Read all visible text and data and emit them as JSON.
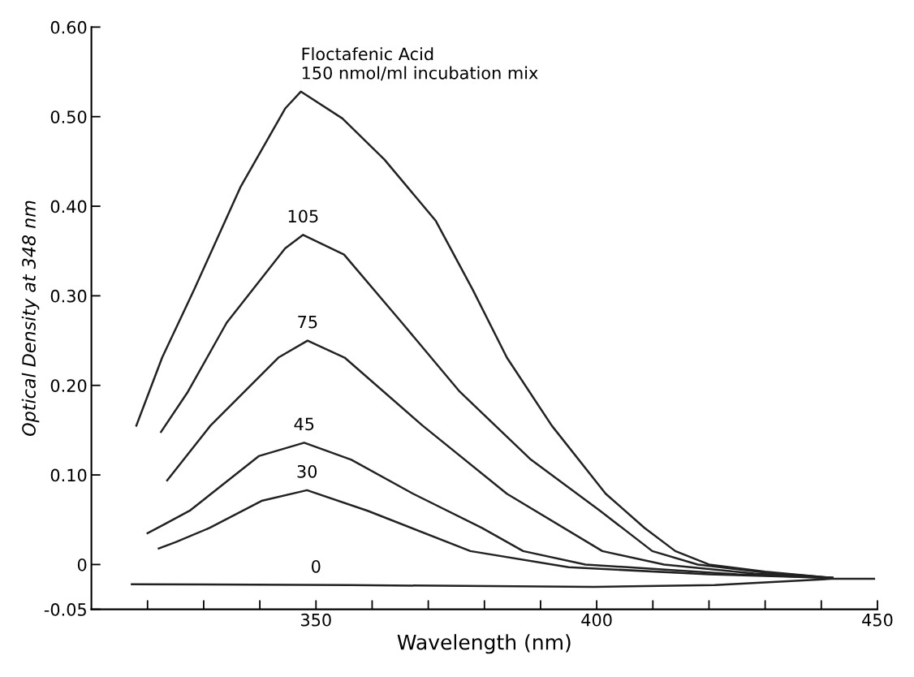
{
  "chart_data": {
    "type": "line",
    "xlabel": "Wavelength (nm)",
    "ylabel": "Optical Density at 348 nm",
    "xlim": [
      310,
      450
    ],
    "ylim": [
      -0.05,
      0.6
    ],
    "xticks": [
      {
        "value": 320,
        "label": null
      },
      {
        "value": 330,
        "label": null
      },
      {
        "value": 340,
        "label": null
      },
      {
        "value": 350,
        "label": "350"
      },
      {
        "value": 360,
        "label": null
      },
      {
        "value": 370,
        "label": null
      },
      {
        "value": 380,
        "label": null
      },
      {
        "value": 390,
        "label": null
      },
      {
        "value": 400,
        "label": "400"
      },
      {
        "value": 410,
        "label": null
      },
      {
        "value": 420,
        "label": null
      },
      {
        "value": 430,
        "label": null
      },
      {
        "value": 440,
        "label": null
      },
      {
        "value": 450,
        "label": "450"
      }
    ],
    "yticks": [
      {
        "value": -0.05,
        "label": "-0.05"
      },
      {
        "value": 0,
        "label": "0"
      },
      {
        "value": 0.1,
        "label": "0.10"
      },
      {
        "value": 0.2,
        "label": "0.20"
      },
      {
        "value": 0.3,
        "label": "0.30"
      },
      {
        "value": 0.4,
        "label": "0.40"
      },
      {
        "value": 0.5,
        "label": "0.50"
      },
      {
        "value": 0.6,
        "label": "0.60"
      }
    ],
    "marker": "none",
    "line_style": "solid",
    "series": [
      {
        "color": "#222222",
        "x": [
          318,
          322.6,
          328.3,
          336.6,
          344.5,
          347.3,
          354.7,
          362.2,
          371.3,
          377.9,
          384.0,
          392.0,
          401.6,
          408.5,
          414.0,
          420,
          430,
          442
        ],
        "values": [
          0.155,
          0.231,
          0.307,
          0.422,
          0.509,
          0.528,
          0.498,
          0.452,
          0.384,
          0.307,
          0.231,
          0.155,
          0.079,
          0.041,
          0.015,
          0.0,
          -0.008,
          -0.015
        ]
      },
      {
        "color": "#222222",
        "x": [
          322.4,
          327.2,
          334.1,
          344.5,
          347.7,
          355.0,
          365.3,
          375.6,
          388.3,
          400.6,
          409.9,
          418,
          430,
          442
        ],
        "values": [
          0.148,
          0.193,
          0.27,
          0.353,
          0.368,
          0.346,
          0.27,
          0.193,
          0.117,
          0.06,
          0.015,
          0.0,
          -0.009,
          -0.015
        ]
      },
      {
        "color": "#222222",
        "x": [
          323.5,
          331.2,
          343.3,
          348.5,
          355.1,
          369.0,
          384.0,
          401.0,
          412,
          428,
          442
        ],
        "values": [
          0.094,
          0.155,
          0.231,
          0.25,
          0.231,
          0.155,
          0.079,
          0.015,
          0.0,
          -0.01,
          -0.015
        ]
      },
      {
        "color": "#222222",
        "x": [
          320,
          323,
          327.5,
          339.8,
          347.9,
          356.3,
          367.3,
          379.5,
          386.9,
          398,
          425,
          442
        ],
        "values": [
          0.035,
          0.045,
          0.06,
          0.121,
          0.136,
          0.117,
          0.079,
          0.041,
          0.015,
          0.0,
          -0.011,
          -0.015
        ]
      },
      {
        "color": "#222222",
        "x": [
          322,
          325,
          331.1,
          340.3,
          348.4,
          359.2,
          377.5,
          395,
          420,
          442
        ],
        "values": [
          0.018,
          0.025,
          0.041,
          0.071,
          0.083,
          0.06,
          0.015,
          -0.003,
          -0.011,
          -0.015
        ]
      },
      {
        "color": "#222222",
        "x": [
          317.2,
          356.1,
          399.5,
          421,
          441.8,
          449.4
        ],
        "values": [
          -0.022,
          -0.023,
          -0.025,
          -0.023,
          -0.016,
          -0.016
        ]
      }
    ],
    "annotations": [
      {
        "text": "Floctafenic Acid\n150 nmol/ml incubation mix",
        "x": 347.3,
        "y": 0.528
      },
      {
        "text": "105",
        "x": 347.7,
        "y": 0.368
      },
      {
        "text": "75",
        "x": 348.5,
        "y": 0.25
      },
      {
        "text": "45",
        "x": 347.9,
        "y": 0.136
      },
      {
        "text": "30",
        "x": 348.4,
        "y": 0.083
      },
      {
        "text": "0",
        "x": 350,
        "y": -0.023
      }
    ]
  }
}
